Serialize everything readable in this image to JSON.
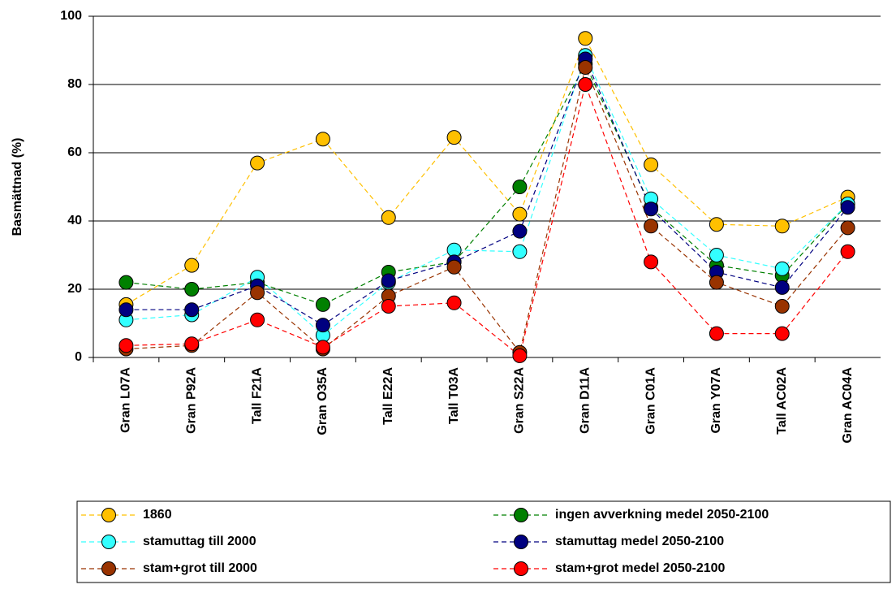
{
  "chart_data": {
    "type": "line",
    "y_label": "Basmättnad (%)",
    "categories": [
      "Gran L07A",
      "Gran P92A",
      "Tall F21A",
      "Gran O35A",
      "Tall E22A",
      "Tall T03A",
      "Gran S22A",
      "Gran D11A",
      "Gran C01A",
      "Gran Y07A",
      "Tall AC02A",
      "Gran AC04A"
    ],
    "series": [
      {
        "name": "1860",
        "color": "#ffc000",
        "values": [
          15.5,
          27,
          57,
          64,
          41,
          64.5,
          42,
          93.5,
          56.5,
          39,
          38.5,
          47
        ]
      },
      {
        "name": "ingen avverkning medel 2050-2100",
        "color": "#008000",
        "values": [
          22,
          20,
          22,
          15.5,
          25,
          28,
          50,
          86,
          44,
          27,
          24,
          45
        ]
      },
      {
        "name": "stamuttag till 2000",
        "color": "#33ffff",
        "values": [
          11,
          12.5,
          23.5,
          6.5,
          22,
          31.5,
          31,
          88.5,
          46.5,
          30,
          26,
          45
        ]
      },
      {
        "name": "stamuttag medel 2050-2100",
        "color": "#000080",
        "values": [
          14,
          14,
          21,
          9.5,
          22.5,
          28,
          37,
          87.5,
          43.5,
          25,
          20.5,
          44
        ]
      },
      {
        "name": "stam+grot till 2000",
        "color": "#993300",
        "values": [
          2.5,
          3.5,
          19,
          2.5,
          18,
          26.5,
          1.5,
          85,
          38.5,
          22,
          15,
          38
        ]
      },
      {
        "name": "stam+grot medel 2050-2100",
        "color": "#ff0000",
        "values": [
          3.5,
          4,
          11,
          3,
          15,
          16,
          0.5,
          80,
          28,
          7,
          7,
          31
        ]
      }
    ],
    "ylim": [
      0,
      100
    ],
    "yticks": [
      0,
      20,
      40,
      60,
      80,
      100
    ],
    "grid": true,
    "legend_position": "bottom"
  }
}
